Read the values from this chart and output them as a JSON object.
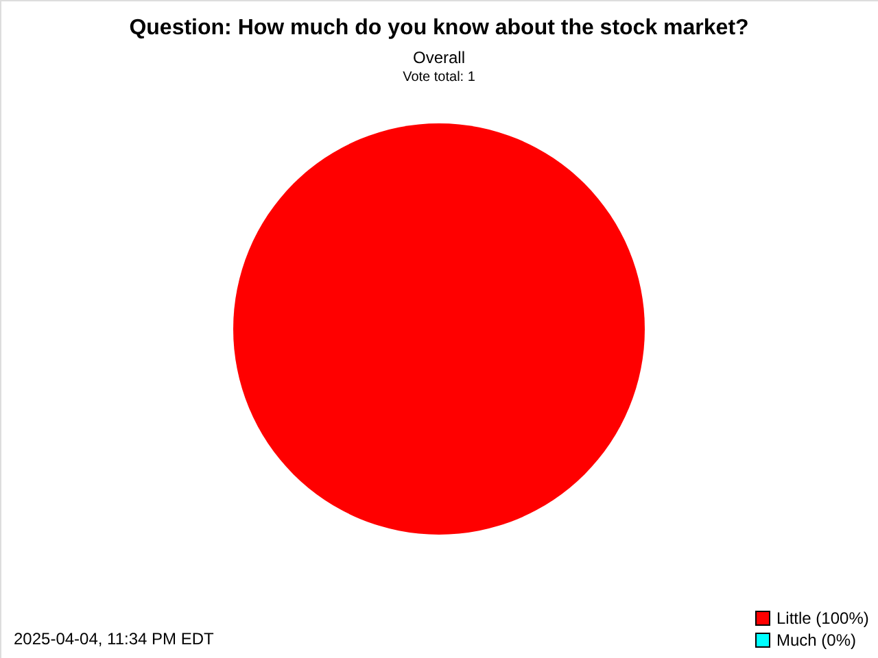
{
  "chart_data": {
    "type": "pie",
    "title": "Question: How much do you know about the stock market?",
    "subtitle": "Overall",
    "annotations": [
      "Vote total: 1",
      "2025-04-04, 11:34 PM EDT"
    ],
    "categories": [
      "Little (100%)",
      "Much (0%)"
    ],
    "values": [
      100,
      0
    ],
    "colors": [
      "#ff0000",
      "#00ffff"
    ],
    "legend": "bottom right"
  }
}
